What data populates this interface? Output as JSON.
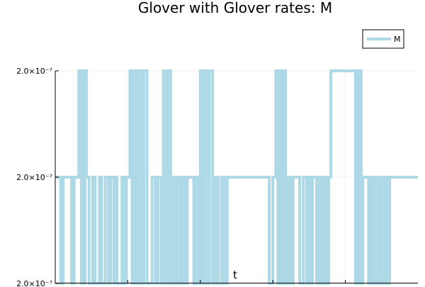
{
  "chart_data": {
    "type": "line",
    "title": "Glover with Glover rates: M",
    "xlabel": "t",
    "ylabel": "",
    "ylim": [
      0,
      2
    ],
    "yticks": [
      {
        "value": 0,
        "label": "2.0×10⁻⁷"
      },
      {
        "value": 1,
        "label": "2.0×10⁻⁷"
      },
      {
        "value": 2,
        "label": "2.0×10⁻⁷"
      }
    ],
    "xlim": [
      0,
      100
    ],
    "grid": true,
    "legend": {
      "position": "top-right",
      "entries": [
        "M"
      ]
    },
    "series": [
      {
        "name": "M",
        "color": "#ADD8E6",
        "x": [
          0,
          1.5,
          1.5,
          2.2,
          2.2,
          4.5,
          4.5,
          5.2,
          5.2,
          6.5,
          6.5,
          7.2,
          7.2,
          7.5,
          7.5,
          7.8,
          7.8,
          8.2,
          8.2,
          8.6,
          8.6,
          9.3,
          9.3,
          10.3,
          10.3,
          11.0,
          11.0,
          12.2,
          12.2,
          12.8,
          12.8,
          13.8,
          13.8,
          14.7,
          14.7,
          15.3,
          15.3,
          16.2,
          16.2,
          16.6,
          16.6,
          17.0,
          17.0,
          18.4,
          18.4,
          18.8,
          18.8,
          19.6,
          19.6,
          20.6,
          20.6,
          21.2,
          21.2,
          21.4,
          21.4,
          22.2,
          22.2,
          22.8,
          22.8,
          23.6,
          23.6,
          24.4,
          24.4,
          25.3,
          25.3,
          26.7,
          26.7,
          27.6,
          27.6,
          28.3,
          28.3,
          29.2,
          29.2,
          29.8,
          29.8,
          30.6,
          30.6,
          31.2,
          31.2,
          31.8,
          31.8,
          32.6,
          32.6,
          33.2,
          33.2,
          33.6,
          33.6,
          34.4,
          34.4,
          35.0,
          35.0,
          35.8,
          35.8,
          36.4,
          36.4,
          38.2,
          38.2,
          38.6,
          38.6,
          39.4,
          39.4,
          40.0,
          40.0,
          40.7,
          40.7,
          41.2,
          41.2,
          42.0,
          42.0,
          42.5,
          42.5,
          43.4,
          43.4,
          44.2,
          44.2,
          45.0,
          45.0,
          45.9,
          45.9,
          46.6,
          46.6,
          47.4,
          47.4,
          59.0,
          59.0,
          60.0,
          60.0,
          60.8,
          60.8,
          61.4,
          61.4,
          61.7,
          61.7,
          62.3,
          62.3,
          62.9,
          62.9,
          63.5,
          63.5,
          64.2,
          64.2,
          64.9,
          64.9,
          65.6,
          65.6,
          67.4,
          67.4,
          68.4,
          68.4,
          69.3,
          69.3,
          69.9,
          69.9,
          70.4,
          70.4,
          70.9,
          70.9,
          72.1,
          72.1,
          72.8,
          72.8,
          73.4,
          73.4,
          74.2,
          74.2,
          74.8,
          74.8,
          75.4,
          75.4,
          76.0,
          76.0,
          82.8,
          82.8,
          83.2,
          83.2,
          83.6,
          83.6,
          84.0,
          84.0,
          84.4,
          84.4,
          84.8,
          84.8,
          86.4,
          86.4,
          87.1,
          87.1,
          87.6,
          87.6,
          88.4,
          88.4,
          88.8,
          88.8,
          89.5,
          89.5,
          90.0,
          90.0,
          90.8,
          90.8,
          91.4,
          91.4,
          92.2,
          92.2,
          100
        ],
        "y": [
          1,
          1,
          0,
          0,
          1,
          1,
          0,
          0,
          1,
          1,
          2,
          2,
          0,
          0,
          2,
          2,
          0,
          0,
          2,
          2,
          1,
          1,
          0,
          0,
          1,
          1,
          0,
          0,
          1,
          1,
          0,
          0,
          1,
          1,
          0,
          0,
          1,
          1,
          0,
          0,
          1,
          1,
          0,
          0,
          1,
          1,
          0,
          0,
          1,
          1,
          2,
          2,
          0,
          0,
          2,
          2,
          0,
          0,
          2,
          2,
          0,
          0,
          2,
          2,
          0,
          0,
          1,
          1,
          0,
          0,
          1,
          1,
          0,
          0,
          2,
          2,
          0,
          0,
          2,
          2,
          0,
          0,
          1,
          1,
          0,
          0,
          1,
          1,
          0,
          0,
          1,
          1,
          0,
          0,
          1,
          1,
          0,
          0,
          1,
          1,
          0,
          0,
          2,
          2,
          0,
          0,
          2,
          2,
          0,
          0,
          2,
          2,
          0,
          0,
          1,
          1,
          0,
          0,
          1,
          1,
          0,
          0,
          1,
          1,
          0,
          0,
          1,
          1,
          2,
          2,
          0,
          0,
          2,
          2,
          0,
          0,
          2,
          2,
          0,
          0,
          1,
          1,
          0,
          0,
          1,
          1,
          0,
          0,
          1,
          1,
          0,
          0,
          1,
          1,
          0,
          0,
          1,
          1,
          0,
          0,
          1,
          1,
          0,
          0,
          1,
          1,
          0,
          0,
          1,
          1,
          2,
          2,
          0,
          0,
          2,
          2,
          0,
          0,
          2,
          2,
          0,
          0,
          1,
          1,
          0,
          0,
          1,
          1,
          0,
          0,
          1,
          1,
          0,
          0,
          1,
          1,
          0,
          0,
          1,
          1,
          0,
          0,
          1,
          1
        ]
      }
    ]
  }
}
